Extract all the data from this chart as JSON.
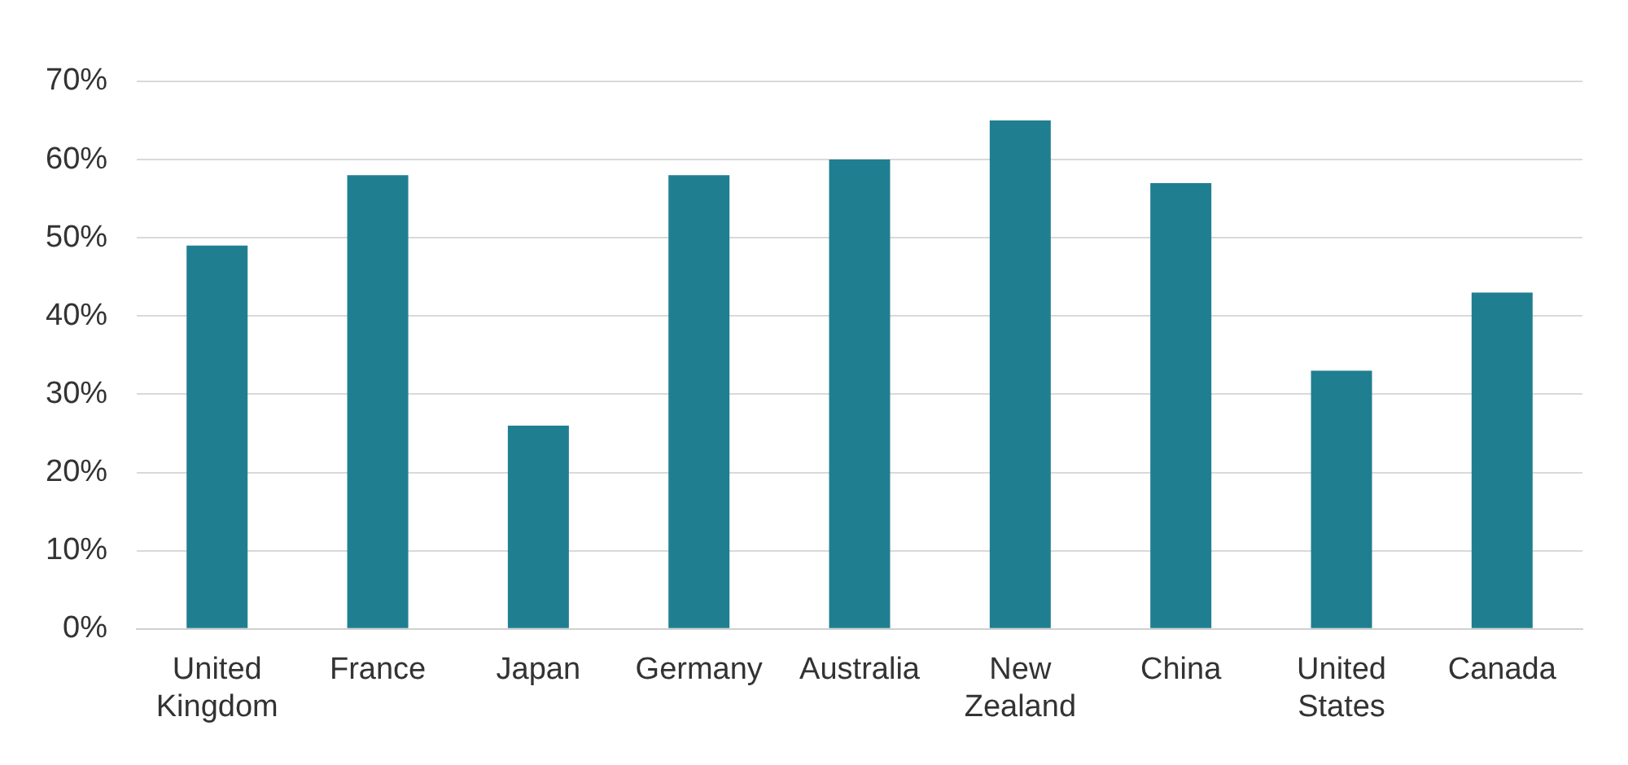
{
  "chart_data": {
    "type": "bar",
    "categories": [
      "United Kingdom",
      "France",
      "Japan",
      "Germany",
      "Australia",
      "New Zealand",
      "China",
      "United States",
      "Canada"
    ],
    "values": [
      49,
      58,
      26,
      58,
      60,
      65,
      57,
      33,
      43
    ],
    "color": "#1f7f91",
    "ylim": [
      0,
      70
    ],
    "yticks": [
      {
        "value": 0,
        "label": "0%"
      },
      {
        "value": 10,
        "label": "10%"
      },
      {
        "value": 20,
        "label": "20%"
      },
      {
        "value": 30,
        "label": "30%"
      },
      {
        "value": 40,
        "label": "40%"
      },
      {
        "value": 50,
        "label": "50%"
      },
      {
        "value": 60,
        "label": "60%"
      },
      {
        "value": 70,
        "label": "70%"
      }
    ],
    "grid": "y",
    "legend": false
  }
}
